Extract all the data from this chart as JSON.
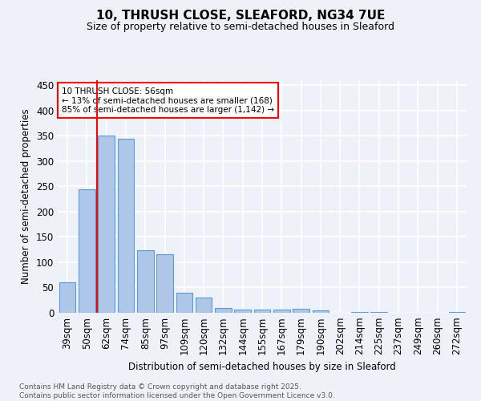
{
  "title1": "10, THRUSH CLOSE, SLEAFORD, NG34 7UE",
  "title2": "Size of property relative to semi-detached houses in Sleaford",
  "xlabel": "Distribution of semi-detached houses by size in Sleaford",
  "ylabel": "Number of semi-detached properties",
  "categories": [
    "39sqm",
    "50sqm",
    "62sqm",
    "74sqm",
    "85sqm",
    "97sqm",
    "109sqm",
    "120sqm",
    "132sqm",
    "144sqm",
    "155sqm",
    "167sqm",
    "179sqm",
    "190sqm",
    "202sqm",
    "214sqm",
    "225sqm",
    "237sqm",
    "249sqm",
    "260sqm",
    "272sqm"
  ],
  "values": [
    61,
    245,
    350,
    345,
    124,
    116,
    39,
    30,
    9,
    6,
    7,
    7,
    8,
    5,
    0,
    2,
    1,
    0,
    0,
    0,
    2
  ],
  "bar_color": "#aec6e8",
  "bar_edge_color": "#5b9bd5",
  "background_color": "#eef2f8",
  "grid_color": "#ffffff",
  "vline_x_pos": 1.5,
  "vline_color": "red",
  "annotation_title": "10 THRUSH CLOSE: 56sqm",
  "annotation_line1": "← 13% of semi-detached houses are smaller (168)",
  "annotation_line2": "85% of semi-detached houses are larger (1,142) →",
  "ylim": [
    0,
    460
  ],
  "yticks": [
    0,
    50,
    100,
    150,
    200,
    250,
    300,
    350,
    400,
    450
  ],
  "footer1": "Contains HM Land Registry data © Crown copyright and database right 2025.",
  "footer2": "Contains public sector information licensed under the Open Government Licence v3.0."
}
